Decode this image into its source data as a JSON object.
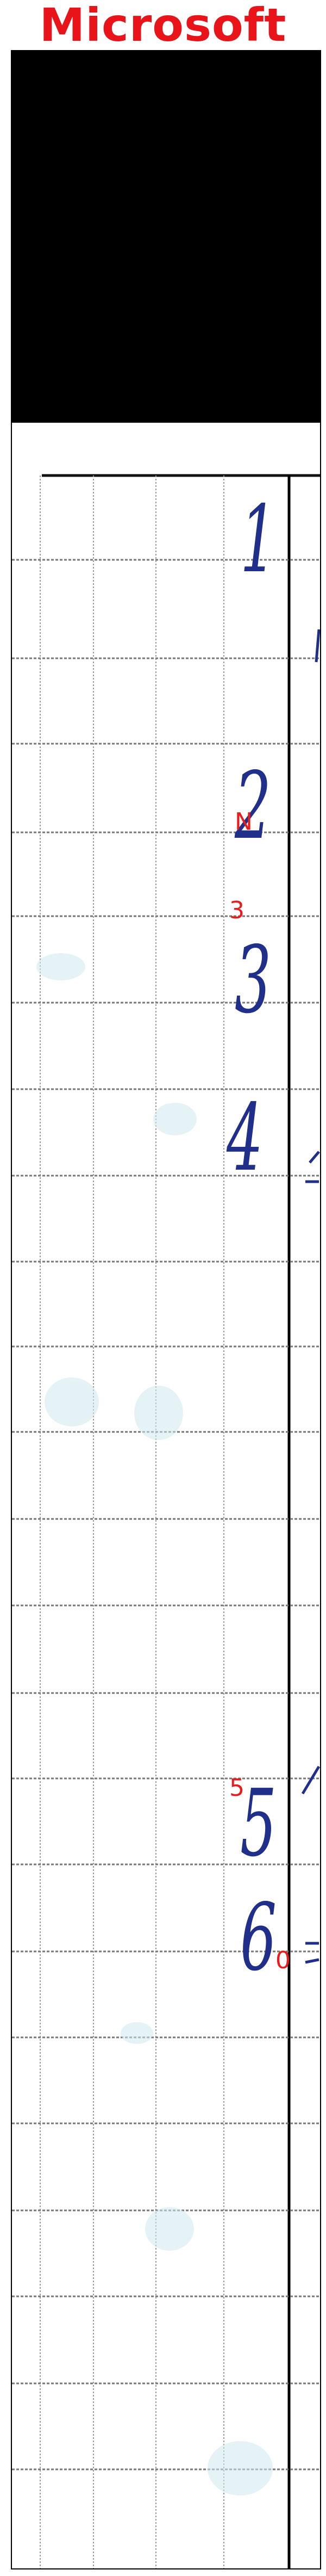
{
  "header": {
    "title": "Microsoft"
  },
  "colors": {
    "title": "#e8141a",
    "ink": "#1f2f8a",
    "annotation": "#e81c1c",
    "frame": "#000000"
  },
  "sheet": {
    "handwritten_digits": [
      "1",
      "2",
      "3",
      "4",
      "5",
      "6"
    ],
    "annotations": [
      "N",
      "3",
      "5",
      "0"
    ]
  }
}
